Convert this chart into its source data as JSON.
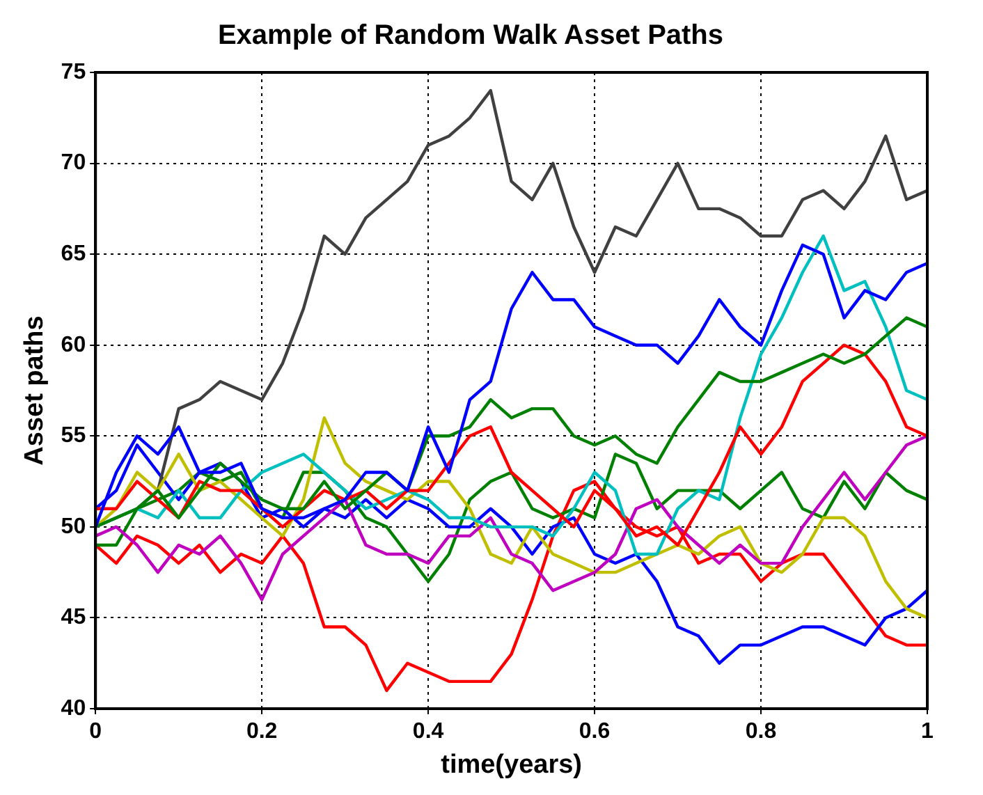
{
  "chart_data": {
    "type": "line",
    "title": "Example of Random Walk Asset Paths",
    "xlabel": "time(years)",
    "ylabel": "Asset paths",
    "x": [
      0,
      0.025,
      0.05,
      0.075,
      0.1,
      0.125,
      0.15,
      0.175,
      0.2,
      0.225,
      0.25,
      0.275,
      0.3,
      0.325,
      0.35,
      0.375,
      0.4,
      0.425,
      0.45,
      0.475,
      0.5,
      0.525,
      0.55,
      0.575,
      0.6,
      0.625,
      0.65,
      0.675,
      0.7,
      0.725,
      0.75,
      0.775,
      0.8,
      0.825,
      0.85,
      0.875,
      0.9,
      0.925,
      0.95,
      0.975,
      1
    ],
    "series": [
      {
        "color": "#0000ff",
        "values": [
          50,
          53,
          55,
          54,
          55.5,
          53,
          53,
          53.5,
          51,
          50.5,
          50.5,
          51,
          51.5,
          53,
          53,
          52,
          55.5,
          53,
          57,
          58,
          62,
          64,
          62.5,
          62.5,
          61,
          60.5,
          60,
          60,
          59,
          60.5,
          62.5,
          61,
          60,
          63,
          65.5,
          65,
          61.5,
          63,
          62.5,
          64,
          64.5
        ]
      },
      {
        "color": "#008000",
        "values": [
          50,
          50.5,
          51,
          52,
          50.5,
          52,
          53.5,
          52.5,
          51.5,
          51,
          51,
          52.5,
          51,
          52,
          53,
          52,
          55,
          55,
          55.5,
          57,
          56,
          56.5,
          56.5,
          55,
          54.5,
          55,
          54,
          53.5,
          55.5,
          57,
          58.5,
          58,
          58,
          58.5,
          59,
          59.5,
          59,
          59.5,
          60.5,
          61.5,
          61
        ]
      },
      {
        "color": "#ff0000",
        "values": [
          51,
          51,
          52.5,
          51.5,
          50.5,
          52.5,
          52,
          52,
          51,
          50,
          51,
          52,
          51.5,
          52,
          51,
          52,
          52,
          53.5,
          55,
          55.5,
          53,
          52,
          51,
          50,
          52,
          51,
          49.5,
          50,
          49,
          51,
          53,
          55.5,
          54,
          55.5,
          58,
          59,
          60,
          59.5,
          58,
          55.5,
          55
        ]
      },
      {
        "color": "#00bfbf",
        "values": [
          50,
          50.5,
          51,
          50.5,
          52,
          50.5,
          50.5,
          52,
          53,
          53.5,
          54,
          53,
          52,
          51,
          51.5,
          52,
          51.5,
          50.5,
          50.5,
          50,
          50,
          50,
          49.5,
          51,
          53,
          52,
          48.5,
          48.5,
          51,
          52,
          51.5,
          56,
          59.5,
          61.5,
          64,
          66,
          63,
          63.5,
          61,
          57.5,
          57
        ]
      },
      {
        "color": "#bf00bf",
        "values": [
          49.5,
          50,
          49,
          47.5,
          49,
          48.5,
          49.5,
          48,
          46,
          48.5,
          49.5,
          50.5,
          51.5,
          49,
          48.5,
          48.5,
          48,
          49.5,
          49.5,
          50.5,
          48.5,
          48,
          46.5,
          47,
          47.5,
          48.5,
          51,
          51.5,
          50,
          49,
          48,
          49,
          48,
          48,
          50,
          51.5,
          53,
          51.5,
          53,
          54.5,
          55
        ]
      },
      {
        "color": "#bfbf00",
        "values": [
          50,
          51,
          53,
          52,
          54,
          52,
          52.5,
          51.5,
          50.5,
          49.5,
          51.5,
          56,
          53.5,
          52.5,
          52,
          51.5,
          52.5,
          52.5,
          51,
          48.5,
          48,
          50,
          48.5,
          48,
          47.5,
          47.5,
          48,
          48.5,
          49,
          48.5,
          49.5,
          50,
          48,
          47.5,
          48.5,
          50.5,
          50.5,
          49.5,
          47,
          45.5,
          45
        ]
      },
      {
        "color": "#404040",
        "values": [
          50,
          50.5,
          51,
          52,
          56.5,
          57,
          58,
          57.5,
          57,
          59,
          62,
          66,
          65,
          67,
          68,
          69,
          71,
          71.5,
          72.5,
          74,
          69,
          68,
          70,
          66.5,
          64,
          66.5,
          66,
          68,
          70,
          67.5,
          67.5,
          67,
          66,
          66,
          68,
          68.5,
          67.5,
          69,
          71.5,
          68,
          68.5
        ]
      },
      {
        "color": "#0000ff",
        "values": [
          51,
          52,
          54.5,
          53,
          51.5,
          53,
          53.5,
          52.5,
          50.5,
          51,
          50,
          51,
          50.5,
          51.5,
          50.5,
          51.5,
          51,
          50,
          50,
          51,
          50,
          48.5,
          50,
          50.5,
          48.5,
          48,
          48.5,
          47,
          44.5,
          44,
          42.5,
          43.5,
          43.5,
          44,
          44.5,
          44.5,
          44,
          43.5,
          45,
          45.5,
          46.5
        ]
      },
      {
        "color": "#008000",
        "values": [
          49,
          49,
          51,
          51.5,
          52,
          53,
          52.5,
          53,
          51,
          50.5,
          53,
          53,
          52,
          50.5,
          50,
          48.5,
          47,
          48.5,
          51.5,
          52.5,
          53,
          51,
          50.5,
          51,
          50.5,
          54,
          53.5,
          51,
          52,
          52,
          52,
          51,
          52,
          53,
          51,
          50.5,
          52.5,
          51,
          53,
          52,
          51.5
        ]
      },
      {
        "color": "#ff0000",
        "values": [
          49,
          48,
          49.5,
          49,
          48,
          49,
          47.5,
          48.5,
          48,
          49.5,
          48,
          44.5,
          44.5,
          43.5,
          41,
          42.5,
          42,
          41.5,
          41.5,
          41.5,
          43,
          46,
          49.5,
          52,
          52.5,
          51,
          50,
          49.5,
          50,
          48,
          48.5,
          48.5,
          47,
          48,
          48.5,
          48.5,
          47,
          45.5,
          44,
          43.5,
          43.5
        ]
      }
    ],
    "xlim": [
      0,
      1
    ],
    "xticks": [
      0,
      0.2,
      0.4,
      0.6,
      0.8,
      1
    ],
    "ylim": [
      40,
      75
    ],
    "yticks": [
      40,
      45,
      50,
      55,
      60,
      65,
      70,
      75
    ],
    "grid": true,
    "legend": false,
    "marker": "none",
    "line_style": "solid"
  }
}
